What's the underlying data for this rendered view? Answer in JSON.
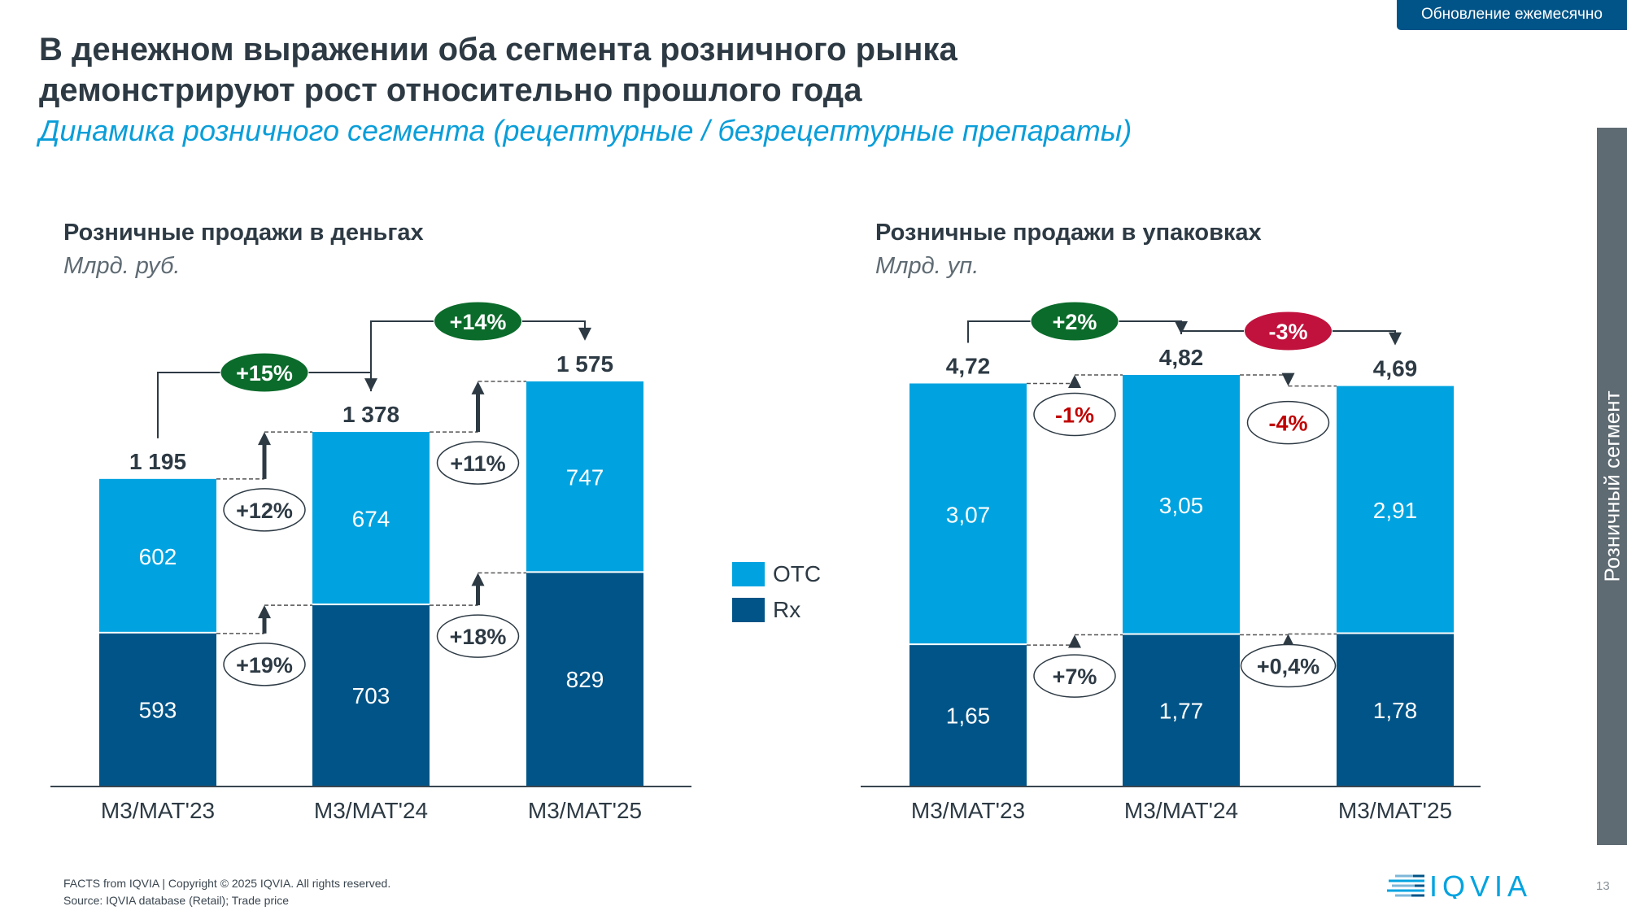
{
  "header": {
    "update_badge": "Обновление ежемесячно",
    "title_line1": "В денежном выражении оба сегмента розничного рынка",
    "title_line2": "демонстрируют рост относительно прошлого года",
    "subtitle": "Динамика розничного сегмента (рецептурные / безрецептурные препараты)"
  },
  "side_tab": "Розничный сегмент",
  "legend": [
    {
      "name": "OTC",
      "color": "#00a3e0"
    },
    {
      "name": "Rx",
      "color": "#005487"
    }
  ],
  "colors": {
    "otc": "#00a3e0",
    "rx": "#005487",
    "growth_positive": "#0b6b2b",
    "growth_negative": "#c0123c",
    "negative_text": "#c00000",
    "text_dark": "#2d3a44"
  },
  "chart_data": [
    {
      "type": "bar",
      "stacked": true,
      "title": "Розничные продажи в деньгах",
      "unit": "Млрд. руб.",
      "categories": [
        "M3/MAT'23",
        "M3/MAT'24",
        "M3/MAT'25"
      ],
      "series": [
        {
          "name": "Rx",
          "values": [
            593,
            703,
            829
          ],
          "labels": [
            "593",
            "703",
            "829"
          ]
        },
        {
          "name": "OTC",
          "values": [
            602,
            674,
            747
          ],
          "labels": [
            "602",
            "674",
            "747"
          ]
        }
      ],
      "totals": [
        1195,
        1378,
        1575
      ],
      "total_labels": [
        "1 195",
        "1 378",
        "1 575"
      ],
      "total_growth": [
        {
          "from": 0,
          "to": 1,
          "label": "+15%",
          "sign": "positive"
        },
        {
          "from": 1,
          "to": 2,
          "label": "+14%",
          "sign": "positive"
        }
      ],
      "otc_growth": [
        {
          "from": 0,
          "to": 1,
          "label": "+12%",
          "sign": "positive"
        },
        {
          "from": 1,
          "to": 2,
          "label": "+11%",
          "sign": "positive"
        }
      ],
      "rx_growth": [
        {
          "from": 0,
          "to": 1,
          "label": "+19%",
          "sign": "positive"
        },
        {
          "from": 1,
          "to": 2,
          "label": "+18%",
          "sign": "positive"
        }
      ],
      "ylim": [
        0,
        1600
      ],
      "grid": false,
      "legend": "right"
    },
    {
      "type": "bar",
      "stacked": true,
      "title": "Розничные продажи в упаковках",
      "unit": "Млрд. уп.",
      "categories": [
        "M3/MAT'23",
        "M3/MAT'24",
        "M3/MAT'25"
      ],
      "series": [
        {
          "name": "Rx",
          "values": [
            1.65,
            1.77,
            1.78
          ],
          "labels": [
            "1,65",
            "1,77",
            "1,78"
          ]
        },
        {
          "name": "OTC",
          "values": [
            3.07,
            3.05,
            2.91
          ],
          "labels": [
            "3,07",
            "3,05",
            "2,91"
          ]
        }
      ],
      "totals": [
        4.72,
        4.82,
        4.69
      ],
      "total_labels": [
        "4,72",
        "4,82",
        "4,69"
      ],
      "total_growth": [
        {
          "from": 0,
          "to": 1,
          "label": "+2%",
          "sign": "positive"
        },
        {
          "from": 1,
          "to": 2,
          "label": "-3%",
          "sign": "negative"
        }
      ],
      "otc_growth": [
        {
          "from": 0,
          "to": 1,
          "label": "-1%",
          "sign": "negative"
        },
        {
          "from": 1,
          "to": 2,
          "label": "-4%",
          "sign": "negative"
        }
      ],
      "rx_growth": [
        {
          "from": 0,
          "to": 1,
          "label": "+7%",
          "sign": "positive"
        },
        {
          "from": 1,
          "to": 2,
          "label": "+0,4%",
          "sign": "positive"
        }
      ],
      "ylim": [
        0,
        4.82
      ],
      "grid": false,
      "legend": "none"
    }
  ],
  "footer": {
    "copyright": "FACTS from IQVIA | Copyright © 2025 IQVIA. All rights reserved.",
    "source": "Source: IQVIA database (Retail); Trade price",
    "logo_text": "IQVIA",
    "page_number": "13"
  }
}
